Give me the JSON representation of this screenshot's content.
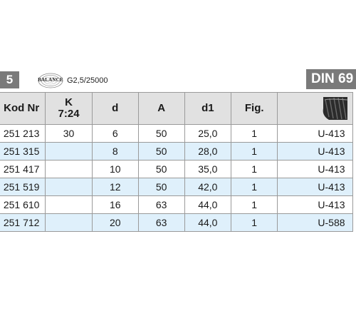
{
  "header": {
    "left_badge": "5",
    "balance_logo_word": "BALANCE",
    "balance_grade": "G2,5/25000",
    "right_badge": "DIN 69"
  },
  "table": {
    "columns": {
      "kod_nr": "Kod Nr",
      "k_line1": "K",
      "k_line2": "7:24",
      "d": "d",
      "a": "A",
      "d1": "d1",
      "fig": "Fig."
    },
    "rows": [
      {
        "kod": "251 213",
        "k": "30",
        "d": "6",
        "a": "50",
        "d1": "25,0",
        "fig": "1",
        "ref": "U-413"
      },
      {
        "kod": "251 315",
        "k": "",
        "d": "8",
        "a": "50",
        "d1": "28,0",
        "fig": "1",
        "ref": "U-413"
      },
      {
        "kod": "251 417",
        "k": "",
        "d": "10",
        "a": "50",
        "d1": "35,0",
        "fig": "1",
        "ref": "U-413"
      },
      {
        "kod": "251 519",
        "k": "",
        "d": "12",
        "a": "50",
        "d1": "42,0",
        "fig": "1",
        "ref": "U-413"
      },
      {
        "kod": "251 610",
        "k": "",
        "d": "16",
        "a": "63",
        "d1": "44,0",
        "fig": "1",
        "ref": "U-413"
      },
      {
        "kod": "251 712",
        "k": "",
        "d": "20",
        "a": "63",
        "d1": "44,0",
        "fig": "1",
        "ref": "U-588"
      }
    ]
  },
  "colors": {
    "badge_gray": "#7a7a7a",
    "header_gray": "#e1e1e1",
    "row_alt_blue": "#dff0fb",
    "grid_line": "#9a9a9a"
  },
  "icons": {
    "balance_logo": "balance-spiral-icon",
    "tool": "threaded-tool-icon"
  }
}
